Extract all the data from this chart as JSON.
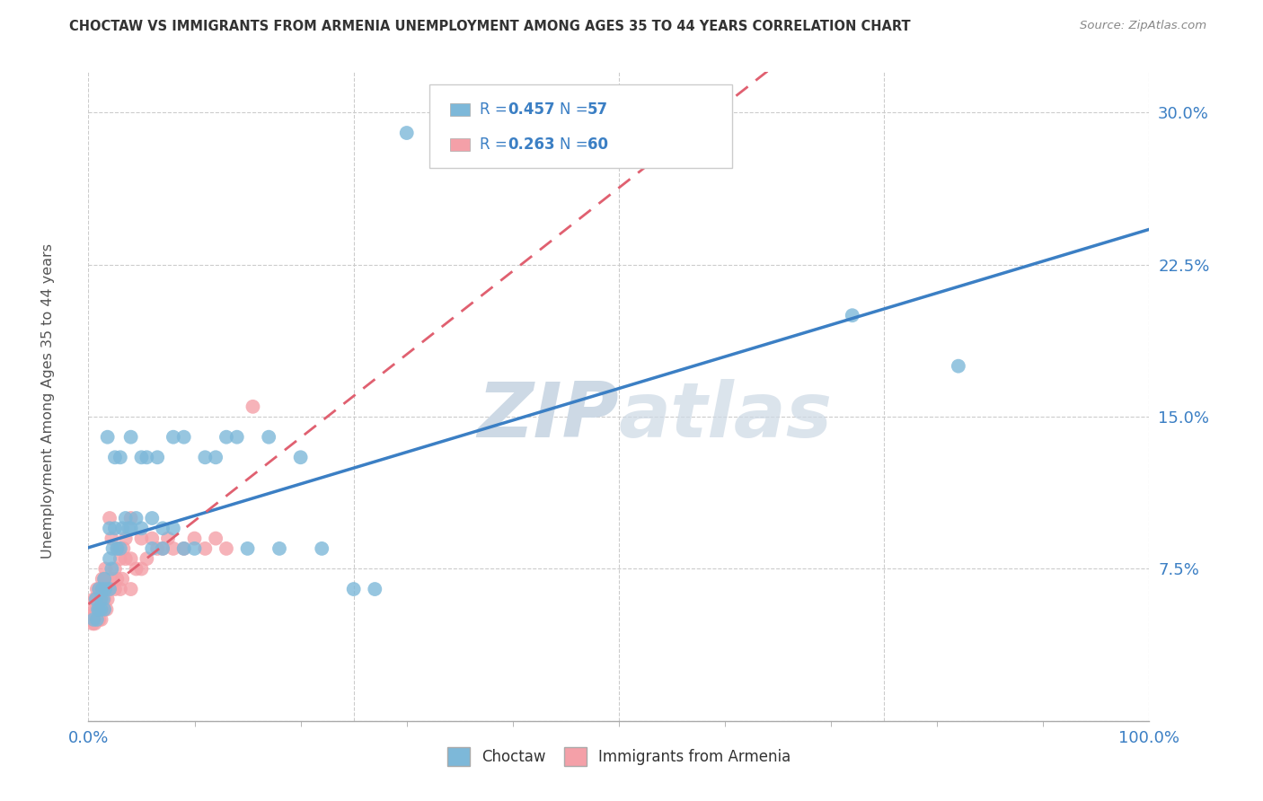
{
  "title": "CHOCTAW VS IMMIGRANTS FROM ARMENIA UNEMPLOYMENT AMONG AGES 35 TO 44 YEARS CORRELATION CHART",
  "source": "Source: ZipAtlas.com",
  "ylabel": "Unemployment Among Ages 35 to 44 years",
  "xlim": [
    0.0,
    1.0
  ],
  "ylim": [
    0.0,
    0.32
  ],
  "yticks": [
    0.0,
    0.075,
    0.15,
    0.225,
    0.3
  ],
  "ytick_labels": [
    "",
    "7.5%",
    "15.0%",
    "22.5%",
    "30.0%"
  ],
  "xtick_labels": [
    "0.0%",
    "100.0%"
  ],
  "xtick_positions": [
    0.0,
    1.0
  ],
  "choctaw_R": 0.457,
  "choctaw_N": 57,
  "armenia_R": 0.263,
  "armenia_N": 60,
  "choctaw_color": "#7db8d9",
  "armenia_color": "#f4a0a8",
  "choctaw_line_color": "#3b7fc4",
  "armenia_line_color": "#e06070",
  "tick_color": "#3b7fc4",
  "background_color": "#ffffff",
  "grid_color": "#cccccc",
  "watermark_color": "#cdd9e5",
  "choctaw_x": [
    0.005,
    0.007,
    0.008,
    0.009,
    0.01,
    0.01,
    0.012,
    0.012,
    0.013,
    0.014,
    0.015,
    0.015,
    0.016,
    0.018,
    0.02,
    0.02,
    0.02,
    0.022,
    0.023,
    0.025,
    0.025,
    0.027,
    0.03,
    0.03,
    0.032,
    0.035,
    0.038,
    0.04,
    0.04,
    0.045,
    0.05,
    0.05,
    0.055,
    0.06,
    0.06,
    0.065,
    0.07,
    0.07,
    0.08,
    0.08,
    0.09,
    0.09,
    0.1,
    0.11,
    0.12,
    0.13,
    0.14,
    0.15,
    0.17,
    0.18,
    0.2,
    0.22,
    0.25,
    0.27,
    0.3,
    0.72,
    0.82
  ],
  "choctaw_y": [
    0.05,
    0.06,
    0.05,
    0.055,
    0.055,
    0.065,
    0.055,
    0.06,
    0.065,
    0.06,
    0.055,
    0.07,
    0.065,
    0.14,
    0.065,
    0.08,
    0.095,
    0.075,
    0.085,
    0.095,
    0.13,
    0.085,
    0.085,
    0.13,
    0.095,
    0.1,
    0.095,
    0.095,
    0.14,
    0.1,
    0.095,
    0.13,
    0.13,
    0.085,
    0.1,
    0.13,
    0.085,
    0.095,
    0.095,
    0.14,
    0.085,
    0.14,
    0.085,
    0.13,
    0.13,
    0.14,
    0.14,
    0.085,
    0.14,
    0.085,
    0.13,
    0.085,
    0.065,
    0.065,
    0.29,
    0.2,
    0.175
  ],
  "armenia_x": [
    0.002,
    0.003,
    0.004,
    0.005,
    0.005,
    0.005,
    0.006,
    0.007,
    0.007,
    0.008,
    0.008,
    0.009,
    0.01,
    0.01,
    0.01,
    0.01,
    0.012,
    0.012,
    0.012,
    0.013,
    0.013,
    0.015,
    0.015,
    0.015,
    0.015,
    0.016,
    0.017,
    0.018,
    0.02,
    0.02,
    0.022,
    0.022,
    0.025,
    0.025,
    0.027,
    0.028,
    0.03,
    0.03,
    0.032,
    0.033,
    0.035,
    0.035,
    0.04,
    0.04,
    0.04,
    0.045,
    0.05,
    0.05,
    0.055,
    0.06,
    0.065,
    0.07,
    0.075,
    0.08,
    0.09,
    0.1,
    0.11,
    0.12,
    0.13,
    0.155
  ],
  "armenia_y": [
    0.05,
    0.052,
    0.048,
    0.05,
    0.055,
    0.06,
    0.048,
    0.055,
    0.06,
    0.05,
    0.065,
    0.055,
    0.05,
    0.055,
    0.06,
    0.065,
    0.05,
    0.055,
    0.065,
    0.055,
    0.07,
    0.055,
    0.06,
    0.065,
    0.07,
    0.075,
    0.055,
    0.06,
    0.065,
    0.1,
    0.07,
    0.09,
    0.065,
    0.075,
    0.07,
    0.085,
    0.065,
    0.08,
    0.07,
    0.085,
    0.08,
    0.09,
    0.065,
    0.08,
    0.1,
    0.075,
    0.075,
    0.09,
    0.08,
    0.09,
    0.085,
    0.085,
    0.09,
    0.085,
    0.085,
    0.09,
    0.085,
    0.09,
    0.085,
    0.155
  ]
}
